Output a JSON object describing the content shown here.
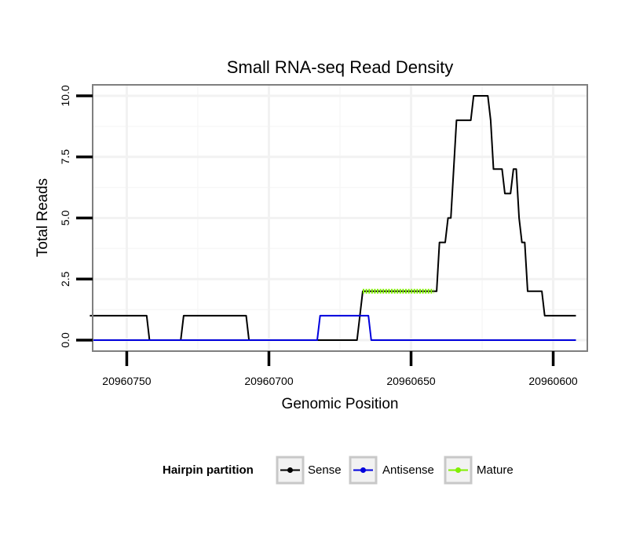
{
  "chart_data": {
    "type": "line",
    "title": "Small RNA-seq Read Density",
    "xlabel": "Genomic Position",
    "ylabel": "Total Reads",
    "xlim": [
      20960762,
      20960588
    ],
    "ylim": [
      -0.45,
      10.45
    ],
    "x_reversed": true,
    "grid": true,
    "xticks": [
      {
        "value": 20960750,
        "label": "20960750"
      },
      {
        "value": 20960700,
        "label": "20960700"
      },
      {
        "value": 20960650,
        "label": "20960650"
      },
      {
        "value": 20960600,
        "label": "20960600"
      }
    ],
    "yticks": [
      {
        "value": 0,
        "label": "0.0"
      },
      {
        "value": 2.5,
        "label": "2.5"
      },
      {
        "value": 5,
        "label": "5.0"
      },
      {
        "value": 7.5,
        "label": "7.5"
      },
      {
        "value": 10,
        "label": "10.0"
      }
    ],
    "series": [
      {
        "name": "Sense",
        "color": "#000000",
        "points": [
          [
            20960763,
            1
          ],
          [
            20960743,
            1
          ],
          [
            20960742,
            0
          ],
          [
            20960731,
            0
          ],
          [
            20960730,
            1
          ],
          [
            20960708,
            1
          ],
          [
            20960707,
            0
          ],
          [
            20960669,
            0
          ],
          [
            20960667,
            2
          ],
          [
            20960643,
            2
          ],
          [
            20960641,
            2
          ],
          [
            20960640,
            4
          ],
          [
            20960638,
            4
          ],
          [
            20960637,
            5
          ],
          [
            20960636,
            5
          ],
          [
            20960635,
            7
          ],
          [
            20960634,
            9
          ],
          [
            20960629,
            9
          ],
          [
            20960628,
            10
          ],
          [
            20960623,
            10
          ],
          [
            20960622,
            9
          ],
          [
            20960621,
            7
          ],
          [
            20960618,
            7
          ],
          [
            20960617,
            6
          ],
          [
            20960615,
            6
          ],
          [
            20960614,
            7
          ],
          [
            20960613,
            7
          ],
          [
            20960612,
            5
          ],
          [
            20960611,
            4
          ],
          [
            20960610,
            4
          ],
          [
            20960609,
            2
          ],
          [
            20960604,
            2
          ],
          [
            20960603,
            1
          ],
          [
            20960592,
            1
          ]
        ]
      },
      {
        "name": "Antisense",
        "color": "#0000dd",
        "points": [
          [
            20960763,
            0
          ],
          [
            20960683,
            0
          ],
          [
            20960682,
            1
          ],
          [
            20960665,
            1
          ],
          [
            20960664,
            0
          ],
          [
            20960592,
            0
          ]
        ]
      },
      {
        "name": "Mature",
        "color": "#80ef00",
        "points": [
          [
            20960667,
            2
          ],
          [
            20960642,
            2
          ]
        ]
      }
    ],
    "legend": {
      "title": "Hairpin partition",
      "position": "bottom",
      "entries": [
        "Sense",
        "Antisense",
        "Mature"
      ]
    }
  }
}
